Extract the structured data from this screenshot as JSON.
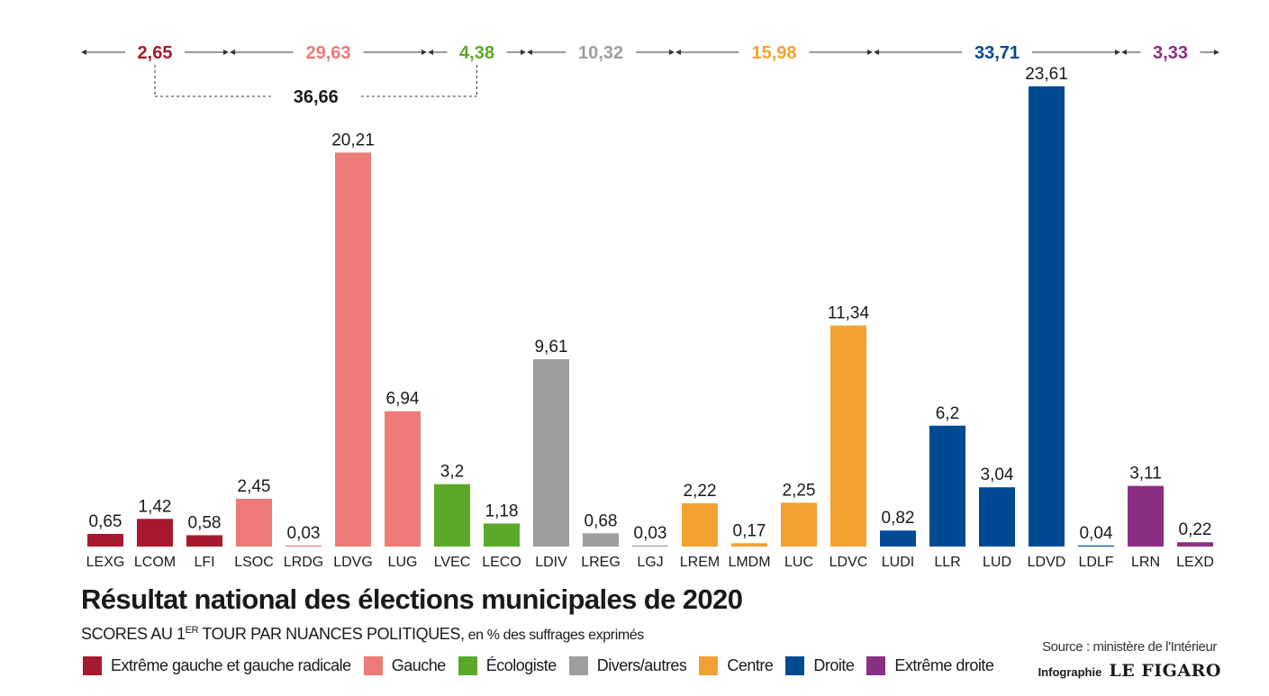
{
  "chart_data": {
    "type": "bar",
    "title": "Résultat national des élections municipales de 2020",
    "subtitle_main": "SCORES AU 1",
    "subtitle_sup": "ER",
    "subtitle_rest": " TOUR PAR NUANCES POLITIQUES,",
    "subtitle_unit": " en % des suffrages exprimés",
    "categories": [
      "LEXG",
      "LCOM",
      "LFI",
      "LSOC",
      "LRDG",
      "LDVG",
      "LUG",
      "LVEC",
      "LECO",
      "LDIV",
      "LREG",
      "LGJ",
      "LREM",
      "LMDM",
      "LUC",
      "LDVC",
      "LUDI",
      "LLR",
      "LUD",
      "LDVD",
      "LDLF",
      "LRN",
      "LEXD"
    ],
    "values": [
      0.65,
      1.42,
      0.58,
      2.45,
      0.03,
      20.21,
      6.94,
      3.2,
      1.18,
      9.61,
      0.68,
      0.03,
      2.22,
      0.17,
      2.25,
      11.34,
      0.82,
      6.2,
      3.04,
      23.61,
      0.04,
      3.11,
      0.22
    ],
    "value_labels": [
      "0,65",
      "1,42",
      "0,58",
      "2,45",
      "0,03",
      "20,21",
      "6,94",
      "3,2",
      "1,18",
      "9,61",
      "0,68",
      "0,03",
      "2,22",
      "0,17",
      "2,25",
      "11,34",
      "0,82",
      "6,2",
      "3,04",
      "23,61",
      "0,04",
      "3,11",
      "0,22"
    ],
    "bar_groups": [
      "eg",
      "eg",
      "eg",
      "g",
      "g",
      "g",
      "g",
      "eco",
      "eco",
      "div",
      "div",
      "div",
      "c",
      "c",
      "c",
      "c",
      "d",
      "d",
      "d",
      "d",
      "d",
      "ed",
      "ed"
    ],
    "group_totals": [
      {
        "group": "eg",
        "label": "2,65",
        "value": 2.65,
        "start": 0,
        "end": 2
      },
      {
        "group": "g",
        "label": "29,63",
        "value": 29.63,
        "start": 3,
        "end": 6
      },
      {
        "group": "eco",
        "label": "4,38",
        "value": 4.38,
        "start": 7,
        "end": 8
      },
      {
        "group": "div",
        "label": "10,32",
        "value": 10.32,
        "start": 9,
        "end": 11
      },
      {
        "group": "c",
        "label": "15,98",
        "value": 15.98,
        "start": 12,
        "end": 15
      },
      {
        "group": "d",
        "label": "33,71",
        "value": 33.71,
        "start": 16,
        "end": 20
      },
      {
        "group": "ed",
        "label": "3,33",
        "value": 3.33,
        "start": 21,
        "end": 22
      }
    ],
    "combined_total": {
      "label": "36,66",
      "value": 36.66,
      "from_group": 0,
      "to_group": 2
    },
    "ylim": [
      0,
      24
    ],
    "grid": false,
    "legend_position": "bottom-left",
    "legend": [
      {
        "key": "eg",
        "label": "Extrême gauche et gauche radicale",
        "color": "#a6192e"
      },
      {
        "key": "g",
        "label": "Gauche",
        "color": "#ec7a76"
      },
      {
        "key": "eco",
        "label": "Écologiste",
        "color": "#5ba829"
      },
      {
        "key": "div",
        "label": "Divers/autres",
        "color": "#9d9d9d"
      },
      {
        "key": "c",
        "label": "Centre",
        "color": "#f3a133"
      },
      {
        "key": "d",
        "label": "Droite",
        "color": "#004a93"
      },
      {
        "key": "ed",
        "label": "Extrême droite",
        "color": "#8a2f82"
      }
    ]
  },
  "footer": {
    "source": "Source : ministère de l'Intérieur",
    "credit_label": "Infographie",
    "credit_brand": "LE FIGARO"
  }
}
